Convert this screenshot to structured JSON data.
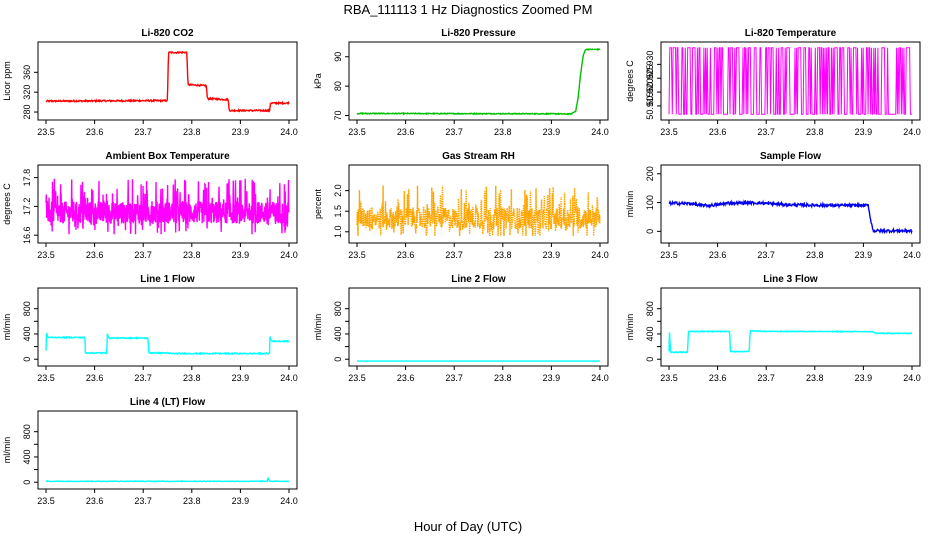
{
  "figure": {
    "title": "RBA_111113 1 Hz Diagnostics Zoomed PM",
    "xlabel": "Hour of Day (UTC)"
  },
  "chart_data": [
    {
      "type": "line",
      "title": "Li-820 CO2",
      "ylabel": "Licor ppm",
      "color": "#ff0000",
      "xlim": [
        23.5,
        24.0
      ],
      "ylim": [
        270,
        415
      ],
      "xticks": [
        23.5,
        23.6,
        23.7,
        23.8,
        23.9,
        24.0
      ],
      "xtick_labels": [
        "23.5",
        "23.6",
        "23.7",
        "23.8",
        "23.9",
        "24.0"
      ],
      "yticks": [
        280,
        320,
        360
      ],
      "ytick_labels": [
        "280",
        "320",
        "360"
      ],
      "noise": 1.5,
      "x": [
        23.5,
        23.75,
        23.752,
        23.79,
        23.792,
        23.83,
        23.832,
        23.875,
        23.877,
        23.96,
        23.962,
        24.0
      ],
      "y": [
        302,
        303,
        400,
        400,
        335,
        333,
        307,
        305,
        283,
        283,
        298,
        298
      ]
    },
    {
      "type": "line",
      "title": "Li-820 Pressure",
      "ylabel": "kPa",
      "color": "#00c000",
      "xlim": [
        23.5,
        24.0
      ],
      "ylim": [
        69.5,
        94
      ],
      "xticks": [
        23.5,
        23.6,
        23.7,
        23.8,
        23.9,
        24.0
      ],
      "xtick_labels": [
        "23.5",
        "23.6",
        "23.7",
        "23.8",
        "23.9",
        "24.0"
      ],
      "yticks": [
        70,
        80,
        90
      ],
      "ytick_labels": [
        "70",
        "80",
        "90"
      ],
      "noise": 0.15,
      "x": [
        23.5,
        23.9,
        23.94,
        23.95,
        23.955,
        23.96,
        23.965,
        23.97,
        24.0
      ],
      "y": [
        70.7,
        70.6,
        70.5,
        71.5,
        76,
        84,
        90,
        92.5,
        92.5
      ]
    },
    {
      "type": "line",
      "title": "Li-820 Temperature",
      "ylabel": "degrees C",
      "color": "#ff00ff",
      "xlim": [
        23.5,
        24.0
      ],
      "ylim": [
        50.911,
        50.937
      ],
      "xticks": [
        23.5,
        23.6,
        23.7,
        23.8,
        23.9,
        24.0
      ],
      "xtick_labels": [
        "23.5",
        "23.6",
        "23.7",
        "23.8",
        "23.9",
        "24.0"
      ],
      "yticks": [
        50.915,
        50.92,
        50.925,
        50.93
      ],
      "ytick_labels": [
        "50.915",
        "50.920",
        "50.925",
        "50.930"
      ],
      "levels": [
        50.912,
        50.936
      ],
      "spikes": 300
    },
    {
      "type": "line",
      "title": "Ambient Box Temperature",
      "ylabel": "degrees C",
      "color": "#ff00ff",
      "xlim": [
        23.5,
        24.0
      ],
      "ylim": [
        16.5,
        18.0
      ],
      "xticks": [
        23.5,
        23.6,
        23.7,
        23.8,
        23.9,
        24.0
      ],
      "xtick_labels": [
        "23.5",
        "23.6",
        "23.7",
        "23.8",
        "23.9",
        "24.0"
      ],
      "yticks": [
        16.6,
        17.2,
        17.8
      ],
      "ytick_labels": [
        "16.6",
        "17.2",
        "17.8"
      ],
      "baseline": 17.0,
      "lo": 16.62,
      "hi": 17.95,
      "points": 900
    },
    {
      "type": "line",
      "title": "Gas Stream RH",
      "ylabel": "percent",
      "color": "#ffa500",
      "xlim": [
        23.5,
        24.0
      ],
      "ylim": [
        0.8,
        2.55
      ],
      "xticks": [
        23.5,
        23.6,
        23.7,
        23.8,
        23.9,
        24.0
      ],
      "xtick_labels": [
        "23.5",
        "23.6",
        "23.7",
        "23.8",
        "23.9",
        "24.0"
      ],
      "yticks": [
        1.0,
        1.5,
        2.0
      ],
      "ytick_labels": [
        "1.0",
        "1.5",
        "2.0"
      ],
      "baseline": 1.25,
      "lo": 0.9,
      "hi": 2.4,
      "points": 700,
      "dotted": true
    },
    {
      "type": "line",
      "title": "Sample Flow",
      "ylabel": "ml/min",
      "color": "#0000ee",
      "xlim": [
        23.5,
        24.0
      ],
      "ylim": [
        -30,
        220
      ],
      "xticks": [
        23.5,
        23.6,
        23.7,
        23.8,
        23.9,
        24.0
      ],
      "xtick_labels": [
        "23.5",
        "23.6",
        "23.7",
        "23.8",
        "23.9",
        "24.0"
      ],
      "yticks": [
        0,
        100,
        200
      ],
      "ytick_labels": [
        "0",
        "100",
        "200"
      ],
      "noise": 5,
      "x": [
        23.5,
        23.55,
        23.56,
        23.58,
        23.6,
        23.62,
        23.68,
        23.7,
        23.75,
        23.8,
        23.85,
        23.9,
        23.91,
        23.915,
        23.92,
        24.0
      ],
      "y": [
        98,
        96,
        91,
        90,
        92,
        98,
        99,
        97,
        92,
        91,
        90,
        90,
        90,
        40,
        2,
        2
      ]
    },
    {
      "type": "line",
      "title": "Line 1 Flow",
      "ylabel": "ml/min",
      "color": "#00ffff",
      "xlim": [
        23.5,
        24.0
      ],
      "ylim": [
        -60,
        1080
      ],
      "xticks": [
        23.5,
        23.6,
        23.7,
        23.8,
        23.9,
        24.0
      ],
      "xtick_labels": [
        "23.5",
        "23.6",
        "23.7",
        "23.8",
        "23.9",
        "24.0"
      ],
      "yticks": [
        0,
        200,
        400,
        600,
        800
      ],
      "ytick_labels": [
        "0",
        "400",
        "800"
      ],
      "tick_label_values": [
        0,
        400,
        800
      ],
      "noise": 8,
      "x": [
        23.5,
        23.501,
        23.503,
        23.505,
        23.58,
        23.581,
        23.625,
        23.626,
        23.628,
        23.63,
        23.71,
        23.711,
        23.75,
        23.752,
        23.96,
        23.961,
        23.963,
        23.966,
        24.0
      ],
      "y": [
        130,
        420,
        360,
        345,
        345,
        100,
        100,
        420,
        350,
        335,
        335,
        100,
        100,
        90,
        90,
        380,
        300,
        285,
        285
      ]
    },
    {
      "type": "line",
      "title": "Line 2 Flow",
      "ylabel": "ml/min",
      "color": "#00ffff",
      "xlim": [
        23.5,
        24.0
      ],
      "ylim": [
        -60,
        1080
      ],
      "xticks": [
        23.5,
        23.6,
        23.7,
        23.8,
        23.9,
        24.0
      ],
      "xtick_labels": [
        "23.5",
        "23.6",
        "23.7",
        "23.8",
        "23.9",
        "24.0"
      ],
      "yticks": [
        0,
        200,
        400,
        600,
        800
      ],
      "ytick_labels": [
        "0",
        "400",
        "800"
      ],
      "tick_label_values": [
        0,
        400,
        800
      ],
      "noise": 0,
      "x": [
        23.5,
        24.0
      ],
      "y": [
        -30,
        -30
      ]
    },
    {
      "type": "line",
      "title": "Line 3 Flow",
      "ylabel": "ml/min",
      "color": "#00ffff",
      "xlim": [
        23.5,
        24.0
      ],
      "ylim": [
        -60,
        1080
      ],
      "xticks": [
        23.5,
        23.6,
        23.7,
        23.8,
        23.9,
        24.0
      ],
      "xtick_labels": [
        "23.5",
        "23.6",
        "23.7",
        "23.8",
        "23.9",
        "24.0"
      ],
      "yticks": [
        0,
        200,
        400,
        600,
        800
      ],
      "ytick_labels": [
        "0",
        "400",
        "800"
      ],
      "tick_label_values": [
        0,
        400,
        800
      ],
      "noise": 6,
      "x": [
        23.5,
        23.501,
        23.503,
        23.505,
        23.538,
        23.54,
        23.625,
        23.626,
        23.665,
        23.667,
        23.7,
        23.8,
        23.92,
        23.925,
        24.0
      ],
      "y": [
        120,
        430,
        120,
        110,
        110,
        440,
        440,
        120,
        120,
        450,
        440,
        440,
        435,
        410,
        410
      ]
    },
    {
      "type": "line",
      "title": "Line 4 (LT) Flow",
      "ylabel": "ml/min",
      "color": "#00ffff",
      "xlim": [
        23.5,
        24.0
      ],
      "ylim": [
        -60,
        1080
      ],
      "xticks": [
        23.5,
        23.6,
        23.7,
        23.8,
        23.9,
        24.0
      ],
      "xtick_labels": [
        "23.5",
        "23.6",
        "23.7",
        "23.8",
        "23.9",
        "24.0"
      ],
      "yticks": [
        0,
        200,
        400,
        600,
        800
      ],
      "ytick_labels": [
        "0",
        "400",
        "800"
      ],
      "tick_label_values": [
        0,
        400,
        800
      ],
      "noise": 4,
      "x": [
        23.5,
        23.955,
        23.957,
        23.96,
        23.963,
        24.0
      ],
      "y": [
        15,
        15,
        70,
        20,
        15,
        15
      ]
    }
  ]
}
